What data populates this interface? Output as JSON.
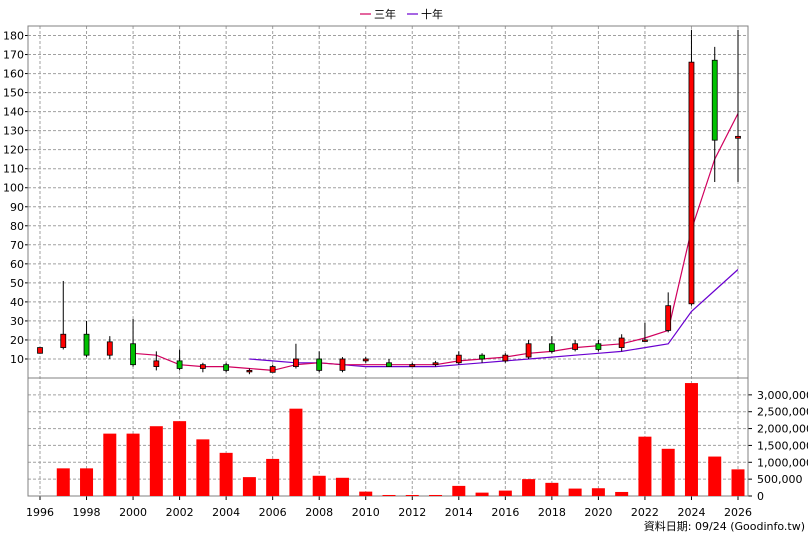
{
  "chart_data": {
    "type": "candlestick+bar",
    "legend": [
      {
        "name": "三年",
        "color": "#d1005e"
      },
      {
        "name": "十年",
        "color": "#6a00d0"
      }
    ],
    "price_axis": {
      "min": 0,
      "max": 185,
      "ticks": [
        10,
        20,
        30,
        40,
        50,
        60,
        70,
        80,
        90,
        100,
        110,
        120,
        130,
        140,
        150,
        160,
        170,
        180
      ]
    },
    "volume_axis": {
      "min": 0,
      "max": 3500000,
      "ticks": [
        0,
        500000,
        1000000,
        1500000,
        2000000,
        2500000,
        3000000
      ],
      "tick_labels": [
        "0",
        "500,000",
        "1,000,000",
        "1,500,000",
        "2,000,000",
        "2,500,000",
        "3,000,000"
      ]
    },
    "x_labels": [
      "1996",
      "1998",
      "2000",
      "2002",
      "2004",
      "2006",
      "2008",
      "2010",
      "2012",
      "2014",
      "2016",
      "2018",
      "2020",
      "2022",
      "2024",
      "2026"
    ],
    "candles": [
      {
        "year": 1996,
        "open": 13,
        "close": 16,
        "high": 16,
        "low": 13
      },
      {
        "year": 1997,
        "open": 16,
        "close": 23,
        "high": 51,
        "low": 15
      },
      {
        "year": 1998,
        "open": 23,
        "close": 12,
        "high": 30,
        "low": 11
      },
      {
        "year": 1999,
        "open": 12,
        "close": 19,
        "high": 22,
        "low": 10
      },
      {
        "year": 2000,
        "open": 18,
        "close": 7,
        "high": 31,
        "low": 6
      },
      {
        "year": 2001,
        "open": 6,
        "close": 9,
        "high": 14,
        "low": 4
      },
      {
        "year": 2002,
        "open": 9,
        "close": 5,
        "high": 15,
        "low": 4
      },
      {
        "year": 2003,
        "open": 5,
        "close": 7,
        "high": 8,
        "low": 3
      },
      {
        "year": 2004,
        "open": 7,
        "close": 4,
        "high": 8,
        "low": 3
      },
      {
        "year": 2005,
        "open": 4,
        "close": 4,
        "high": 5,
        "low": 2
      },
      {
        "year": 2006,
        "open": 3,
        "close": 6,
        "high": 7,
        "low": 3
      },
      {
        "year": 2007,
        "open": 6,
        "close": 10,
        "high": 18,
        "low": 5
      },
      {
        "year": 2008,
        "open": 10,
        "close": 4,
        "high": 14,
        "low": 3
      },
      {
        "year": 2009,
        "open": 4,
        "close": 10,
        "high": 11,
        "low": 3
      },
      {
        "year": 2010,
        "open": 9,
        "close": 10,
        "high": 11,
        "low": 8
      },
      {
        "year": 2011,
        "open": 8,
        "close": 6,
        "high": 10,
        "low": 6
      },
      {
        "year": 2012,
        "open": 6,
        "close": 7,
        "high": 8,
        "low": 6
      },
      {
        "year": 2013,
        "open": 7,
        "close": 8,
        "high": 9,
        "low": 6
      },
      {
        "year": 2014,
        "open": 8,
        "close": 12,
        "high": 14,
        "low": 7
      },
      {
        "year": 2015,
        "open": 12,
        "close": 10,
        "high": 13,
        "low": 8
      },
      {
        "year": 2016,
        "open": 9,
        "close": 12,
        "high": 13,
        "low": 8
      },
      {
        "year": 2017,
        "open": 11,
        "close": 18,
        "high": 20,
        "low": 10
      },
      {
        "year": 2018,
        "open": 18,
        "close": 14,
        "high": 22,
        "low": 13
      },
      {
        "year": 2019,
        "open": 15,
        "close": 18,
        "high": 20,
        "low": 14
      },
      {
        "year": 2020,
        "open": 18,
        "close": 15,
        "high": 20,
        "low": 14
      },
      {
        "year": 2021,
        "open": 16,
        "close": 21,
        "high": 23,
        "low": 14
      },
      {
        "year": 2022,
        "open": 20,
        "close": 20,
        "high": 29,
        "low": 19
      },
      {
        "year": 2023,
        "open": 25,
        "close": 38,
        "high": 45,
        "low": 24
      },
      {
        "year": 2024,
        "open": 39,
        "close": 166,
        "high": 183,
        "low": 38
      },
      {
        "year": 2025,
        "open": 167,
        "close": 125,
        "high": 174,
        "low": 103
      },
      {
        "year": 2026,
        "open": 126,
        "close": 127,
        "high": 183,
        "low": 103
      }
    ],
    "three_year_line": {
      "x": [
        2000,
        2001,
        2002,
        2003,
        2004,
        2005,
        2006,
        2007,
        2008,
        2009,
        2010,
        2011,
        2012,
        2013,
        2014,
        2015,
        2016,
        2017,
        2018,
        2019,
        2020,
        2021,
        2022,
        2023,
        2024,
        2025,
        2026
      ],
      "y": [
        13,
        12,
        7,
        6,
        6,
        5,
        4,
        7,
        8,
        7,
        7,
        7,
        7,
        7,
        9,
        10,
        11,
        13,
        14,
        16,
        17,
        18,
        21,
        25,
        78,
        115,
        139
      ]
    },
    "ten_year_line": {
      "x": [
        2005,
        2006,
        2007,
        2008,
        2009,
        2010,
        2011,
        2012,
        2013,
        2014,
        2015,
        2016,
        2017,
        2018,
        2019,
        2020,
        2021,
        2022,
        2023,
        2024,
        2025,
        2026
      ],
      "y": [
        10,
        9,
        8,
        8,
        7,
        6,
        6,
        6,
        6,
        7,
        8,
        9,
        10,
        11,
        12,
        13,
        14,
        16,
        18,
        35,
        46,
        57
      ]
    },
    "volume": {
      "x": [
        1997,
        1998,
        1999,
        2000,
        2001,
        2002,
        2003,
        2004,
        2005,
        2006,
        2007,
        2008,
        2009,
        2010,
        2011,
        2012,
        2013,
        2014,
        2015,
        2016,
        2017,
        2018,
        2019,
        2020,
        2021,
        2022,
        2023,
        2024,
        2025,
        2026
      ],
      "values": [
        820000,
        820000,
        1850000,
        1850000,
        2070000,
        2220000,
        1680000,
        1280000,
        560000,
        1100000,
        2590000,
        600000,
        540000,
        130000,
        30000,
        30000,
        30000,
        300000,
        100000,
        160000,
        500000,
        390000,
        220000,
        230000,
        120000,
        1760000,
        1400000,
        3350000,
        1170000,
        790000
      ]
    },
    "footer_text": "資料日期: 09/24  (Goodinfo.tw)"
  }
}
